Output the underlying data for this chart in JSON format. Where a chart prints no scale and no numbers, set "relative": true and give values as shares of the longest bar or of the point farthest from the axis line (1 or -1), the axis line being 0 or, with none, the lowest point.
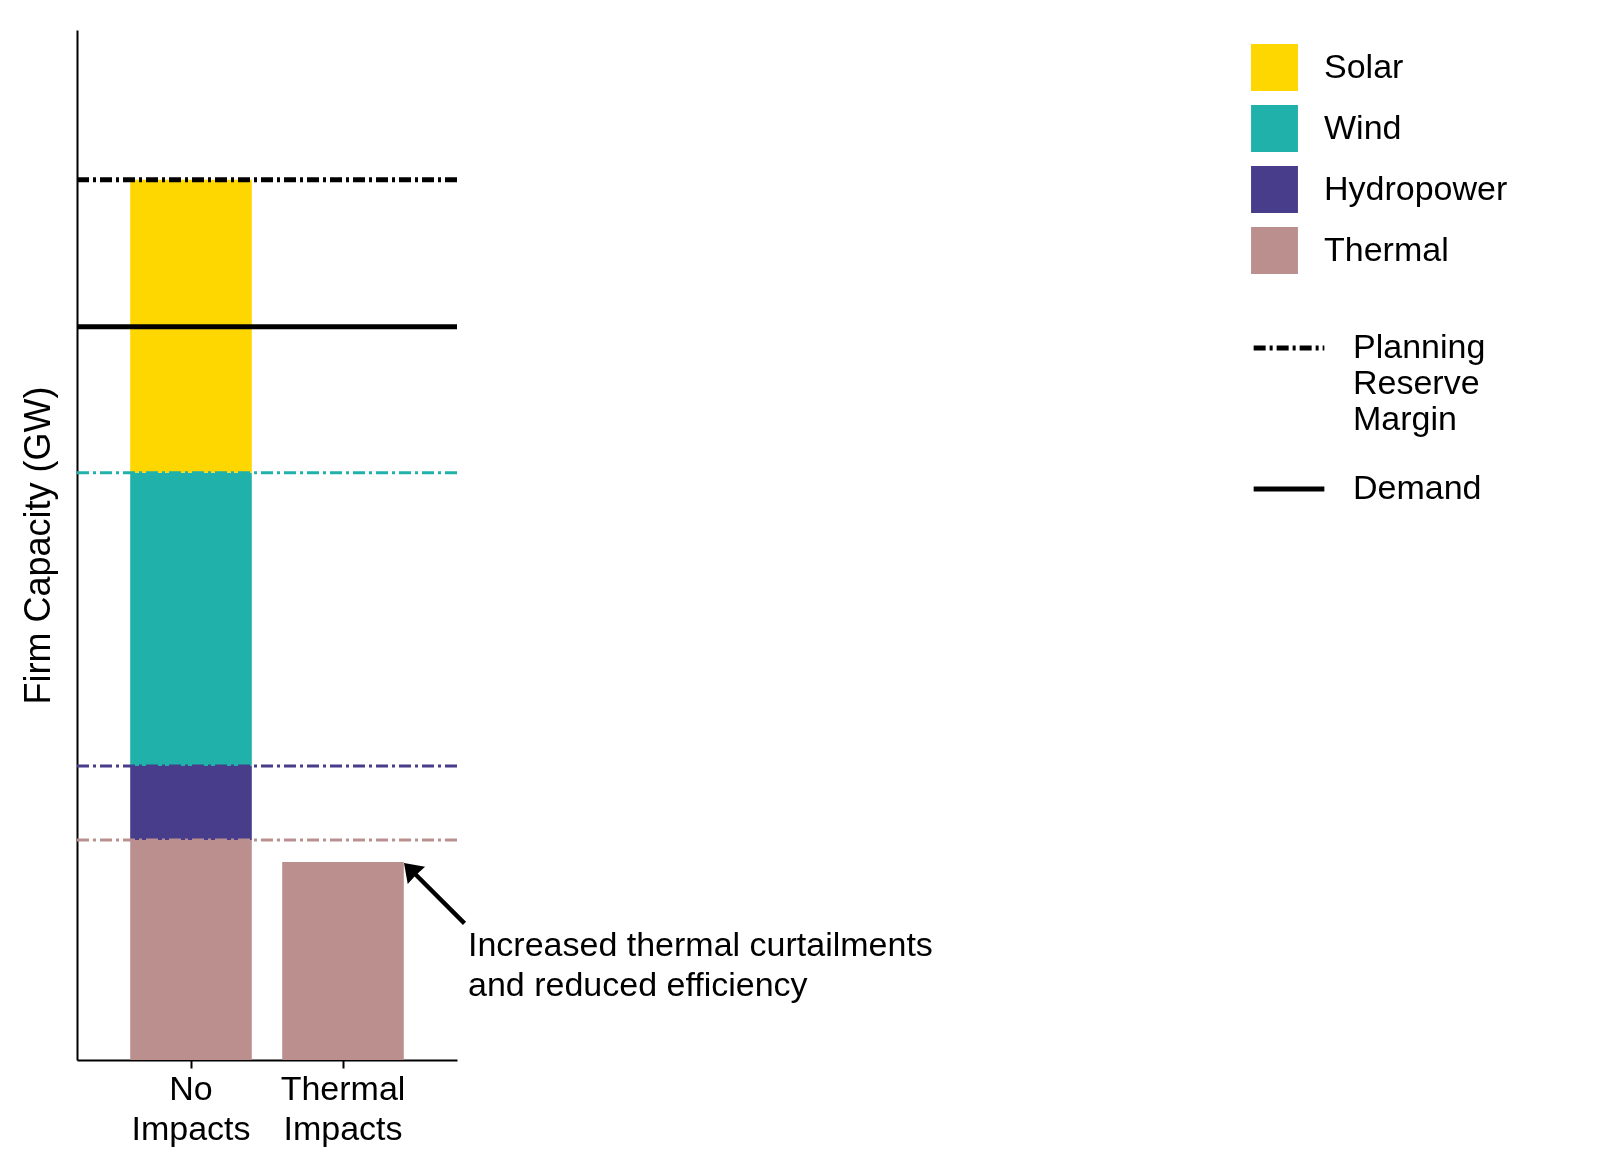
{
  "chart_data": {
    "type": "bar",
    "relative": true,
    "stacked": true,
    "ylabel": "Firm Capacity (GW)",
    "categories": [
      "No Impacts",
      "Thermal Impacts"
    ],
    "series": [
      {
        "name": "Thermal",
        "color": "#bc8f8f",
        "values": [
          0.25,
          0.225
        ]
      },
      {
        "name": "Hydropower",
        "color": "#483d8b",
        "values": [
          0.084,
          null
        ]
      },
      {
        "name": "Wind",
        "color": "#20b2aa",
        "values": [
          0.333,
          null
        ]
      },
      {
        "name": "Solar",
        "color": "#ffd700",
        "values": [
          0.333,
          null
        ]
      }
    ],
    "ref_lines": [
      {
        "axis": "y",
        "value": 1.0,
        "label": "Planning Reserve Margin",
        "color": "#000000",
        "line_style": "dashed"
      },
      {
        "axis": "y",
        "value": 0.833,
        "label": "Demand",
        "color": "#000000",
        "line_style": "solid"
      },
      {
        "axis": "y",
        "value": 0.25,
        "color": "#bc8f8f",
        "line_style": "dashed"
      },
      {
        "axis": "y",
        "value": 0.334,
        "color": "#483d8b",
        "line_style": "dashed"
      },
      {
        "axis": "y",
        "value": 0.667,
        "color": "#20b2aa",
        "line_style": "dashed"
      }
    ],
    "annotations": [
      "Increased thermal curtailments\nand reduced efficiency"
    ],
    "legend": "right",
    "grid": false
  }
}
